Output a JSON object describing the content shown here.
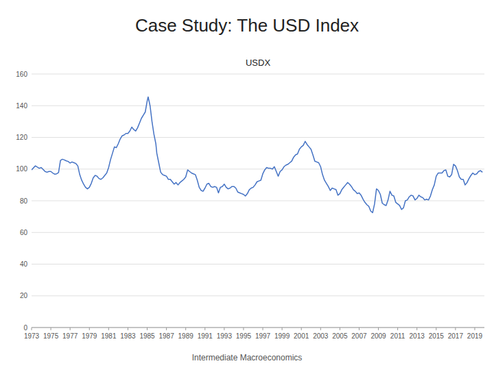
{
  "chart_data": {
    "type": "line",
    "title": "Case Study: The USD Index",
    "subtitle": "USDX",
    "annotations": [
      "Intermediate Macroeconomics"
    ],
    "color": "#4472C4",
    "grid": true,
    "xlim": [
      1973,
      2020
    ],
    "xticks": [
      1973,
      1975,
      1977,
      1979,
      1981,
      1983,
      1985,
      1987,
      1989,
      1991,
      1993,
      1995,
      1997,
      1999,
      2001,
      2003,
      2005,
      2007,
      2009,
      2011,
      2013,
      2015,
      2017,
      2019
    ],
    "ylim": [
      0,
      160
    ],
    "yticks": [
      0,
      20,
      40,
      60,
      80,
      100,
      120,
      140,
      160
    ],
    "x": [
      1973.0,
      1973.2,
      1973.4,
      1973.6,
      1973.8,
      1974.0,
      1974.2,
      1974.4,
      1974.6,
      1974.8,
      1975.0,
      1975.2,
      1975.4,
      1975.6,
      1975.8,
      1976.0,
      1976.2,
      1976.4,
      1976.6,
      1976.8,
      1977.0,
      1977.2,
      1977.4,
      1977.6,
      1977.8,
      1978.0,
      1978.2,
      1978.4,
      1978.6,
      1978.8,
      1979.0,
      1979.2,
      1979.4,
      1979.6,
      1979.8,
      1980.0,
      1980.2,
      1980.4,
      1980.6,
      1980.8,
      1981.0,
      1981.2,
      1981.4,
      1981.6,
      1981.8,
      1982.0,
      1982.2,
      1982.4,
      1982.6,
      1982.8,
      1983.0,
      1983.2,
      1983.4,
      1983.6,
      1983.8,
      1984.0,
      1984.2,
      1984.4,
      1984.6,
      1984.8,
      1985.0,
      1985.1,
      1985.3,
      1985.5,
      1985.7,
      1985.9,
      1986.0,
      1986.2,
      1986.4,
      1986.6,
      1986.8,
      1987.0,
      1987.2,
      1987.4,
      1987.6,
      1987.8,
      1988.0,
      1988.2,
      1988.4,
      1988.6,
      1988.8,
      1989.0,
      1989.2,
      1989.4,
      1989.6,
      1989.8,
      1990.0,
      1990.2,
      1990.4,
      1990.6,
      1990.8,
      1991.0,
      1991.2,
      1991.4,
      1991.6,
      1991.8,
      1992.0,
      1992.2,
      1992.4,
      1992.6,
      1992.8,
      1993.0,
      1993.2,
      1993.4,
      1993.6,
      1993.8,
      1994.0,
      1994.2,
      1994.4,
      1994.6,
      1994.8,
      1995.0,
      1995.2,
      1995.4,
      1995.6,
      1995.8,
      1996.0,
      1996.2,
      1996.4,
      1996.6,
      1996.8,
      1997.0,
      1997.2,
      1997.4,
      1997.6,
      1997.8,
      1998.0,
      1998.2,
      1998.4,
      1998.6,
      1998.8,
      1999.0,
      1999.2,
      1999.4,
      1999.6,
      1999.8,
      2000.0,
      2000.2,
      2000.4,
      2000.6,
      2000.8,
      2001.0,
      2001.2,
      2001.4,
      2001.6,
      2001.8,
      2002.0,
      2002.2,
      2002.4,
      2002.6,
      2002.8,
      2003.0,
      2003.2,
      2003.4,
      2003.6,
      2003.8,
      2004.0,
      2004.2,
      2004.4,
      2004.6,
      2004.8,
      2005.0,
      2005.2,
      2005.4,
      2005.6,
      2005.8,
      2006.0,
      2006.2,
      2006.4,
      2006.6,
      2006.8,
      2007.0,
      2007.2,
      2007.4,
      2007.6,
      2007.8,
      2008.0,
      2008.2,
      2008.4,
      2008.6,
      2008.8,
      2009.0,
      2009.2,
      2009.4,
      2009.6,
      2009.8,
      2010.0,
      2010.2,
      2010.4,
      2010.6,
      2010.8,
      2011.0,
      2011.2,
      2011.4,
      2011.6,
      2011.8,
      2012.0,
      2012.2,
      2012.4,
      2012.6,
      2012.8,
      2013.0,
      2013.2,
      2013.4,
      2013.6,
      2013.8,
      2014.0,
      2014.2,
      2014.4,
      2014.6,
      2014.8,
      2015.0,
      2015.2,
      2015.4,
      2015.6,
      2015.8,
      2016.0,
      2016.2,
      2016.4,
      2016.6,
      2016.8,
      2017.0,
      2017.2,
      2017.4,
      2017.6,
      2017.8,
      2018.0,
      2018.2,
      2018.4,
      2018.6,
      2018.8,
      2019.0,
      2019.2,
      2019.4,
      2019.6,
      2019.8
    ],
    "values": [
      99.5,
      100.8,
      102.0,
      101.2,
      100.5,
      101.0,
      99.8,
      98.5,
      98.0,
      98.5,
      98.5,
      97.5,
      96.8,
      97.0,
      97.8,
      105.5,
      106.2,
      105.8,
      105.2,
      104.8,
      103.8,
      104.5,
      104.0,
      103.5,
      102.0,
      96.5,
      93.0,
      90.5,
      88.5,
      87.5,
      88.5,
      91.0,
      94.5,
      96.0,
      95.5,
      94.0,
      93.5,
      94.5,
      96.0,
      97.5,
      101.0,
      106.0,
      110.0,
      114.0,
      113.5,
      116.0,
      119.0,
      121.0,
      121.5,
      122.5,
      122.5,
      124.0,
      126.5,
      125.0,
      124.0,
      126.0,
      129.0,
      132.0,
      134.0,
      136.0,
      143.0,
      145.5,
      140.0,
      130.0,
      122.0,
      116.0,
      110.0,
      104.0,
      98.0,
      96.5,
      96.0,
      95.5,
      93.5,
      93.5,
      92.0,
      90.5,
      91.5,
      90.0,
      91.5,
      92.5,
      93.5,
      95.0,
      99.5,
      98.5,
      97.5,
      97.0,
      96.5,
      93.0,
      88.5,
      86.5,
      86.0,
      88.0,
      90.5,
      91.0,
      89.0,
      88.5,
      89.0,
      88.5,
      85.0,
      88.5,
      89.0,
      90.5,
      88.5,
      87.5,
      88.0,
      89.0,
      89.0,
      88.0,
      85.5,
      85.0,
      84.5,
      84.0,
      83.0,
      84.5,
      87.0,
      88.0,
      88.5,
      90.0,
      92.0,
      92.5,
      93.0,
      97.0,
      99.5,
      101.0,
      100.5,
      100.5,
      100.0,
      101.5,
      98.5,
      95.5,
      98.5,
      99.5,
      101.5,
      102.5,
      103.0,
      104.0,
      105.0,
      107.5,
      109.0,
      109.5,
      112.5,
      114.0,
      115.0,
      117.5,
      115.5,
      114.0,
      112.5,
      109.0,
      105.0,
      104.5,
      104.0,
      101.5,
      96.5,
      93.0,
      91.0,
      89.0,
      86.5,
      88.0,
      87.5,
      87.0,
      83.5,
      84.5,
      87.0,
      88.5,
      90.0,
      91.5,
      90.5,
      89.0,
      87.0,
      86.0,
      84.5,
      85.0,
      83.5,
      81.0,
      79.0,
      77.5,
      76.5,
      73.5,
      72.5,
      78.0,
      87.5,
      86.5,
      84.0,
      78.5,
      77.5,
      77.0,
      80.5,
      86.0,
      83.5,
      83.0,
      79.0,
      78.0,
      77.0,
      74.5,
      75.5,
      80.0,
      80.5,
      82.5,
      83.5,
      83.0,
      80.5,
      81.5,
      83.5,
      82.5,
      82.0,
      80.5,
      81.0,
      80.5,
      83.0,
      87.0,
      90.0,
      95.5,
      97.5,
      97.5,
      97.5,
      99.0,
      99.5,
      95.5,
      95.0,
      96.5,
      103.0,
      102.0,
      99.0,
      95.0,
      93.5,
      93.5,
      90.0,
      91.5,
      94.0,
      96.0,
      97.5,
      96.5,
      97.0,
      98.5,
      99.0,
      98.0
    ]
  }
}
